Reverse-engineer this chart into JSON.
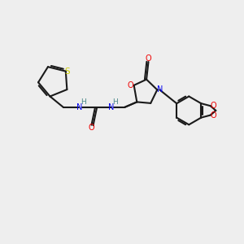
{
  "bg_color": "#eeeeee",
  "bond_color": "#1a1a1a",
  "n_color": "#0000ee",
  "o_color": "#ee0000",
  "s_color": "#cccc00",
  "h_color": "#4a8888",
  "line_width": 1.5,
  "figsize": [
    3.0,
    3.0
  ],
  "dpi": 100,
  "xlim": [
    0,
    10
  ],
  "ylim": [
    0,
    10
  ]
}
